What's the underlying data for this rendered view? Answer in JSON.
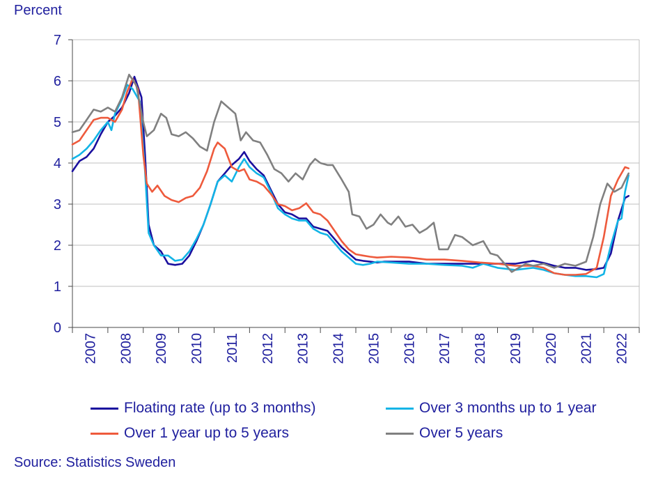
{
  "chart_data": {
    "type": "line",
    "ylabel": "Percent",
    "ylim": [
      0,
      7
    ],
    "yticks": [
      "0",
      "1",
      "2",
      "3",
      "4",
      "5",
      "6",
      "7"
    ],
    "xlim": [
      2007,
      2023
    ],
    "categories": [
      "2007",
      "2008",
      "2009",
      "2010",
      "2011",
      "2012",
      "2013",
      "2014",
      "2015",
      "2016",
      "2017",
      "2018",
      "2019",
      "2020",
      "2021",
      "2022"
    ],
    "grid": true,
    "legend_position": "bottom",
    "source": "Source: Statistics Sweden",
    "series": [
      {
        "name": "Floating rate (up to 3 months)",
        "color": "#1a0f9e",
        "points": [
          [
            2007.0,
            3.8
          ],
          [
            2007.2,
            4.05
          ],
          [
            2007.4,
            4.15
          ],
          [
            2007.6,
            4.35
          ],
          [
            2007.8,
            4.7
          ],
          [
            2008.0,
            5.0
          ],
          [
            2008.2,
            5.15
          ],
          [
            2008.4,
            5.35
          ],
          [
            2008.6,
            5.7
          ],
          [
            2008.75,
            6.1
          ],
          [
            2008.95,
            5.6
          ],
          [
            2009.05,
            4.2
          ],
          [
            2009.15,
            2.5
          ],
          [
            2009.3,
            2.0
          ],
          [
            2009.5,
            1.85
          ],
          [
            2009.7,
            1.55
          ],
          [
            2009.9,
            1.52
          ],
          [
            2010.1,
            1.55
          ],
          [
            2010.3,
            1.75
          ],
          [
            2010.5,
            2.1
          ],
          [
            2010.7,
            2.5
          ],
          [
            2010.9,
            3.0
          ],
          [
            2011.1,
            3.55
          ],
          [
            2011.3,
            3.75
          ],
          [
            2011.5,
            3.95
          ],
          [
            2011.7,
            4.1
          ],
          [
            2011.85,
            4.27
          ],
          [
            2012.0,
            4.05
          ],
          [
            2012.2,
            3.85
          ],
          [
            2012.4,
            3.7
          ],
          [
            2012.6,
            3.35
          ],
          [
            2012.8,
            3.0
          ],
          [
            2013.0,
            2.8
          ],
          [
            2013.2,
            2.75
          ],
          [
            2013.4,
            2.65
          ],
          [
            2013.6,
            2.65
          ],
          [
            2013.8,
            2.45
          ],
          [
            2014.0,
            2.4
          ],
          [
            2014.2,
            2.35
          ],
          [
            2014.4,
            2.15
          ],
          [
            2014.6,
            1.95
          ],
          [
            2014.8,
            1.8
          ],
          [
            2015.0,
            1.65
          ],
          [
            2015.2,
            1.62
          ],
          [
            2015.4,
            1.6
          ],
          [
            2015.6,
            1.58
          ],
          [
            2015.8,
            1.6
          ],
          [
            2016.0,
            1.6
          ],
          [
            2016.5,
            1.6
          ],
          [
            2017.0,
            1.55
          ],
          [
            2017.5,
            1.55
          ],
          [
            2018.0,
            1.55
          ],
          [
            2018.5,
            1.55
          ],
          [
            2019.0,
            1.55
          ],
          [
            2019.5,
            1.55
          ],
          [
            2020.0,
            1.62
          ],
          [
            2020.3,
            1.57
          ],
          [
            2020.6,
            1.5
          ],
          [
            2020.9,
            1.45
          ],
          [
            2021.2,
            1.45
          ],
          [
            2021.5,
            1.4
          ],
          [
            2021.8,
            1.42
          ],
          [
            2022.0,
            1.45
          ],
          [
            2022.2,
            1.8
          ],
          [
            2022.4,
            2.6
          ],
          [
            2022.6,
            3.15
          ],
          [
            2022.7,
            3.2
          ]
        ]
      },
      {
        "name": "Over 3 months up to 1 year",
        "color": "#12b4e6",
        "points": [
          [
            2007.0,
            4.1
          ],
          [
            2007.2,
            4.2
          ],
          [
            2007.4,
            4.35
          ],
          [
            2007.6,
            4.55
          ],
          [
            2007.8,
            4.8
          ],
          [
            2008.0,
            5.0
          ],
          [
            2008.1,
            4.8
          ],
          [
            2008.2,
            5.2
          ],
          [
            2008.4,
            5.55
          ],
          [
            2008.55,
            5.9
          ],
          [
            2008.7,
            5.8
          ],
          [
            2008.9,
            5.5
          ],
          [
            2009.05,
            3.8
          ],
          [
            2009.15,
            2.3
          ],
          [
            2009.3,
            2.0
          ],
          [
            2009.5,
            1.75
          ],
          [
            2009.7,
            1.75
          ],
          [
            2009.9,
            1.62
          ],
          [
            2010.1,
            1.65
          ],
          [
            2010.3,
            1.85
          ],
          [
            2010.5,
            2.15
          ],
          [
            2010.7,
            2.5
          ],
          [
            2010.9,
            3.0
          ],
          [
            2011.1,
            3.55
          ],
          [
            2011.3,
            3.7
          ],
          [
            2011.5,
            3.55
          ],
          [
            2011.7,
            3.9
          ],
          [
            2011.85,
            4.1
          ],
          [
            2012.0,
            3.9
          ],
          [
            2012.2,
            3.75
          ],
          [
            2012.4,
            3.65
          ],
          [
            2012.6,
            3.3
          ],
          [
            2012.8,
            2.9
          ],
          [
            2013.0,
            2.75
          ],
          [
            2013.2,
            2.65
          ],
          [
            2013.4,
            2.6
          ],
          [
            2013.6,
            2.6
          ],
          [
            2013.8,
            2.4
          ],
          [
            2014.0,
            2.3
          ],
          [
            2014.2,
            2.25
          ],
          [
            2014.4,
            2.05
          ],
          [
            2014.6,
            1.85
          ],
          [
            2014.8,
            1.7
          ],
          [
            2015.0,
            1.55
          ],
          [
            2015.2,
            1.52
          ],
          [
            2015.4,
            1.55
          ],
          [
            2015.6,
            1.6
          ],
          [
            2016.0,
            1.58
          ],
          [
            2016.5,
            1.55
          ],
          [
            2017.0,
            1.55
          ],
          [
            2017.5,
            1.52
          ],
          [
            2018.0,
            1.5
          ],
          [
            2018.3,
            1.45
          ],
          [
            2018.6,
            1.55
          ],
          [
            2019.0,
            1.45
          ],
          [
            2019.5,
            1.4
          ],
          [
            2020.0,
            1.45
          ],
          [
            2020.3,
            1.4
          ],
          [
            2020.6,
            1.32
          ],
          [
            2020.9,
            1.28
          ],
          [
            2021.2,
            1.25
          ],
          [
            2021.5,
            1.25
          ],
          [
            2021.8,
            1.22
          ],
          [
            2022.0,
            1.3
          ],
          [
            2022.2,
            2.0
          ],
          [
            2022.4,
            2.6
          ],
          [
            2022.5,
            2.65
          ],
          [
            2022.6,
            3.3
          ],
          [
            2022.7,
            3.7
          ]
        ]
      },
      {
        "name": "Over 1 year up to 5 years",
        "color": "#ee5a3c",
        "points": [
          [
            2007.0,
            4.45
          ],
          [
            2007.2,
            4.55
          ],
          [
            2007.4,
            4.8
          ],
          [
            2007.6,
            5.05
          ],
          [
            2007.8,
            5.1
          ],
          [
            2008.0,
            5.1
          ],
          [
            2008.2,
            5.0
          ],
          [
            2008.4,
            5.3
          ],
          [
            2008.55,
            5.75
          ],
          [
            2008.7,
            6.05
          ],
          [
            2008.85,
            5.8
          ],
          [
            2009.0,
            4.2
          ],
          [
            2009.1,
            3.5
          ],
          [
            2009.25,
            3.3
          ],
          [
            2009.4,
            3.45
          ],
          [
            2009.6,
            3.2
          ],
          [
            2009.8,
            3.1
          ],
          [
            2010.0,
            3.05
          ],
          [
            2010.2,
            3.15
          ],
          [
            2010.4,
            3.2
          ],
          [
            2010.6,
            3.4
          ],
          [
            2010.8,
            3.8
          ],
          [
            2011.0,
            4.35
          ],
          [
            2011.1,
            4.5
          ],
          [
            2011.3,
            4.35
          ],
          [
            2011.5,
            3.9
          ],
          [
            2011.7,
            3.8
          ],
          [
            2011.85,
            3.85
          ],
          [
            2012.0,
            3.6
          ],
          [
            2012.2,
            3.55
          ],
          [
            2012.4,
            3.45
          ],
          [
            2012.6,
            3.25
          ],
          [
            2012.8,
            3.0
          ],
          [
            2013.0,
            2.95
          ],
          [
            2013.2,
            2.85
          ],
          [
            2013.4,
            2.9
          ],
          [
            2013.6,
            3.02
          ],
          [
            2013.8,
            2.8
          ],
          [
            2014.0,
            2.75
          ],
          [
            2014.2,
            2.6
          ],
          [
            2014.4,
            2.35
          ],
          [
            2014.6,
            2.1
          ],
          [
            2014.8,
            1.9
          ],
          [
            2015.0,
            1.78
          ],
          [
            2015.2,
            1.75
          ],
          [
            2015.4,
            1.72
          ],
          [
            2015.6,
            1.7
          ],
          [
            2016.0,
            1.72
          ],
          [
            2016.5,
            1.7
          ],
          [
            2017.0,
            1.65
          ],
          [
            2017.5,
            1.65
          ],
          [
            2018.0,
            1.62
          ],
          [
            2018.5,
            1.58
          ],
          [
            2019.0,
            1.55
          ],
          [
            2019.5,
            1.5
          ],
          [
            2020.0,
            1.5
          ],
          [
            2020.3,
            1.45
          ],
          [
            2020.6,
            1.32
          ],
          [
            2020.9,
            1.28
          ],
          [
            2021.2,
            1.28
          ],
          [
            2021.5,
            1.3
          ],
          [
            2021.8,
            1.45
          ],
          [
            2022.0,
            2.2
          ],
          [
            2022.2,
            3.2
          ],
          [
            2022.4,
            3.6
          ],
          [
            2022.6,
            3.9
          ],
          [
            2022.7,
            3.87
          ]
        ]
      },
      {
        "name": "Over 5 years",
        "color": "#808080",
        "points": [
          [
            2007.0,
            4.75
          ],
          [
            2007.2,
            4.8
          ],
          [
            2007.4,
            5.05
          ],
          [
            2007.6,
            5.3
          ],
          [
            2007.8,
            5.25
          ],
          [
            2008.0,
            5.35
          ],
          [
            2008.2,
            5.25
          ],
          [
            2008.4,
            5.6
          ],
          [
            2008.6,
            6.15
          ],
          [
            2008.8,
            5.9
          ],
          [
            2009.0,
            5.0
          ],
          [
            2009.1,
            4.65
          ],
          [
            2009.3,
            4.8
          ],
          [
            2009.5,
            5.2
          ],
          [
            2009.65,
            5.1
          ],
          [
            2009.8,
            4.7
          ],
          [
            2010.0,
            4.65
          ],
          [
            2010.2,
            4.75
          ],
          [
            2010.4,
            4.6
          ],
          [
            2010.6,
            4.4
          ],
          [
            2010.8,
            4.3
          ],
          [
            2011.0,
            5.0
          ],
          [
            2011.2,
            5.5
          ],
          [
            2011.4,
            5.35
          ],
          [
            2011.6,
            5.2
          ],
          [
            2011.75,
            4.55
          ],
          [
            2011.9,
            4.75
          ],
          [
            2012.1,
            4.55
          ],
          [
            2012.3,
            4.5
          ],
          [
            2012.5,
            4.2
          ],
          [
            2012.7,
            3.85
          ],
          [
            2012.9,
            3.75
          ],
          [
            2013.1,
            3.55
          ],
          [
            2013.3,
            3.75
          ],
          [
            2013.5,
            3.6
          ],
          [
            2013.7,
            3.95
          ],
          [
            2013.85,
            4.1
          ],
          [
            2014.0,
            4.0
          ],
          [
            2014.2,
            3.95
          ],
          [
            2014.35,
            3.95
          ],
          [
            2014.6,
            3.6
          ],
          [
            2014.8,
            3.3
          ],
          [
            2014.9,
            2.75
          ],
          [
            2015.1,
            2.7
          ],
          [
            2015.3,
            2.4
          ],
          [
            2015.5,
            2.5
          ],
          [
            2015.7,
            2.75
          ],
          [
            2015.9,
            2.55
          ],
          [
            2016.0,
            2.5
          ],
          [
            2016.2,
            2.7
          ],
          [
            2016.4,
            2.45
          ],
          [
            2016.6,
            2.5
          ],
          [
            2016.8,
            2.3
          ],
          [
            2017.0,
            2.4
          ],
          [
            2017.2,
            2.55
          ],
          [
            2017.35,
            1.9
          ],
          [
            2017.6,
            1.9
          ],
          [
            2017.8,
            2.25
          ],
          [
            2018.0,
            2.2
          ],
          [
            2018.3,
            2.0
          ],
          [
            2018.6,
            2.1
          ],
          [
            2018.8,
            1.8
          ],
          [
            2019.0,
            1.75
          ],
          [
            2019.2,
            1.55
          ],
          [
            2019.4,
            1.35
          ],
          [
            2019.6,
            1.45
          ],
          [
            2019.8,
            1.55
          ],
          [
            2020.0,
            1.5
          ],
          [
            2020.3,
            1.55
          ],
          [
            2020.6,
            1.45
          ],
          [
            2020.9,
            1.55
          ],
          [
            2021.2,
            1.5
          ],
          [
            2021.5,
            1.6
          ],
          [
            2021.7,
            2.2
          ],
          [
            2021.9,
            3.0
          ],
          [
            2022.1,
            3.5
          ],
          [
            2022.3,
            3.3
          ],
          [
            2022.5,
            3.4
          ],
          [
            2022.7,
            3.75
          ]
        ]
      }
    ]
  }
}
